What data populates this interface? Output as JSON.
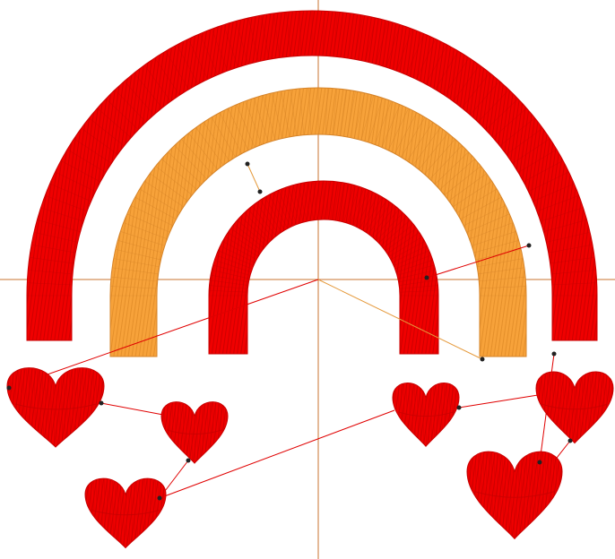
{
  "workspace": {
    "name": "embroidery-design-canvas",
    "background": "#ffffff"
  },
  "colors": {
    "red_thread": "#f00000",
    "red_thread_dark": "#c80000",
    "orange_thread": "#f7a23a",
    "orange_thread_dark": "#d6842a",
    "axis": "#c9732f",
    "jump_line_red": "#e00000",
    "jump_line_orange": "#e59a3c",
    "node": "#222222"
  },
  "objects": [
    {
      "name": "outer-arch",
      "kind": "arch",
      "thread": "red"
    },
    {
      "name": "middle-arch",
      "kind": "arch",
      "thread": "orange"
    },
    {
      "name": "inner-arch",
      "kind": "arch",
      "thread": "red"
    },
    {
      "name": "heart-1",
      "kind": "heart",
      "thread": "red"
    },
    {
      "name": "heart-2",
      "kind": "heart",
      "thread": "red"
    },
    {
      "name": "heart-3",
      "kind": "heart",
      "thread": "red"
    },
    {
      "name": "heart-4",
      "kind": "heart",
      "thread": "red"
    },
    {
      "name": "heart-5",
      "kind": "heart",
      "thread": "red"
    },
    {
      "name": "heart-6",
      "kind": "heart",
      "thread": "red"
    }
  ]
}
